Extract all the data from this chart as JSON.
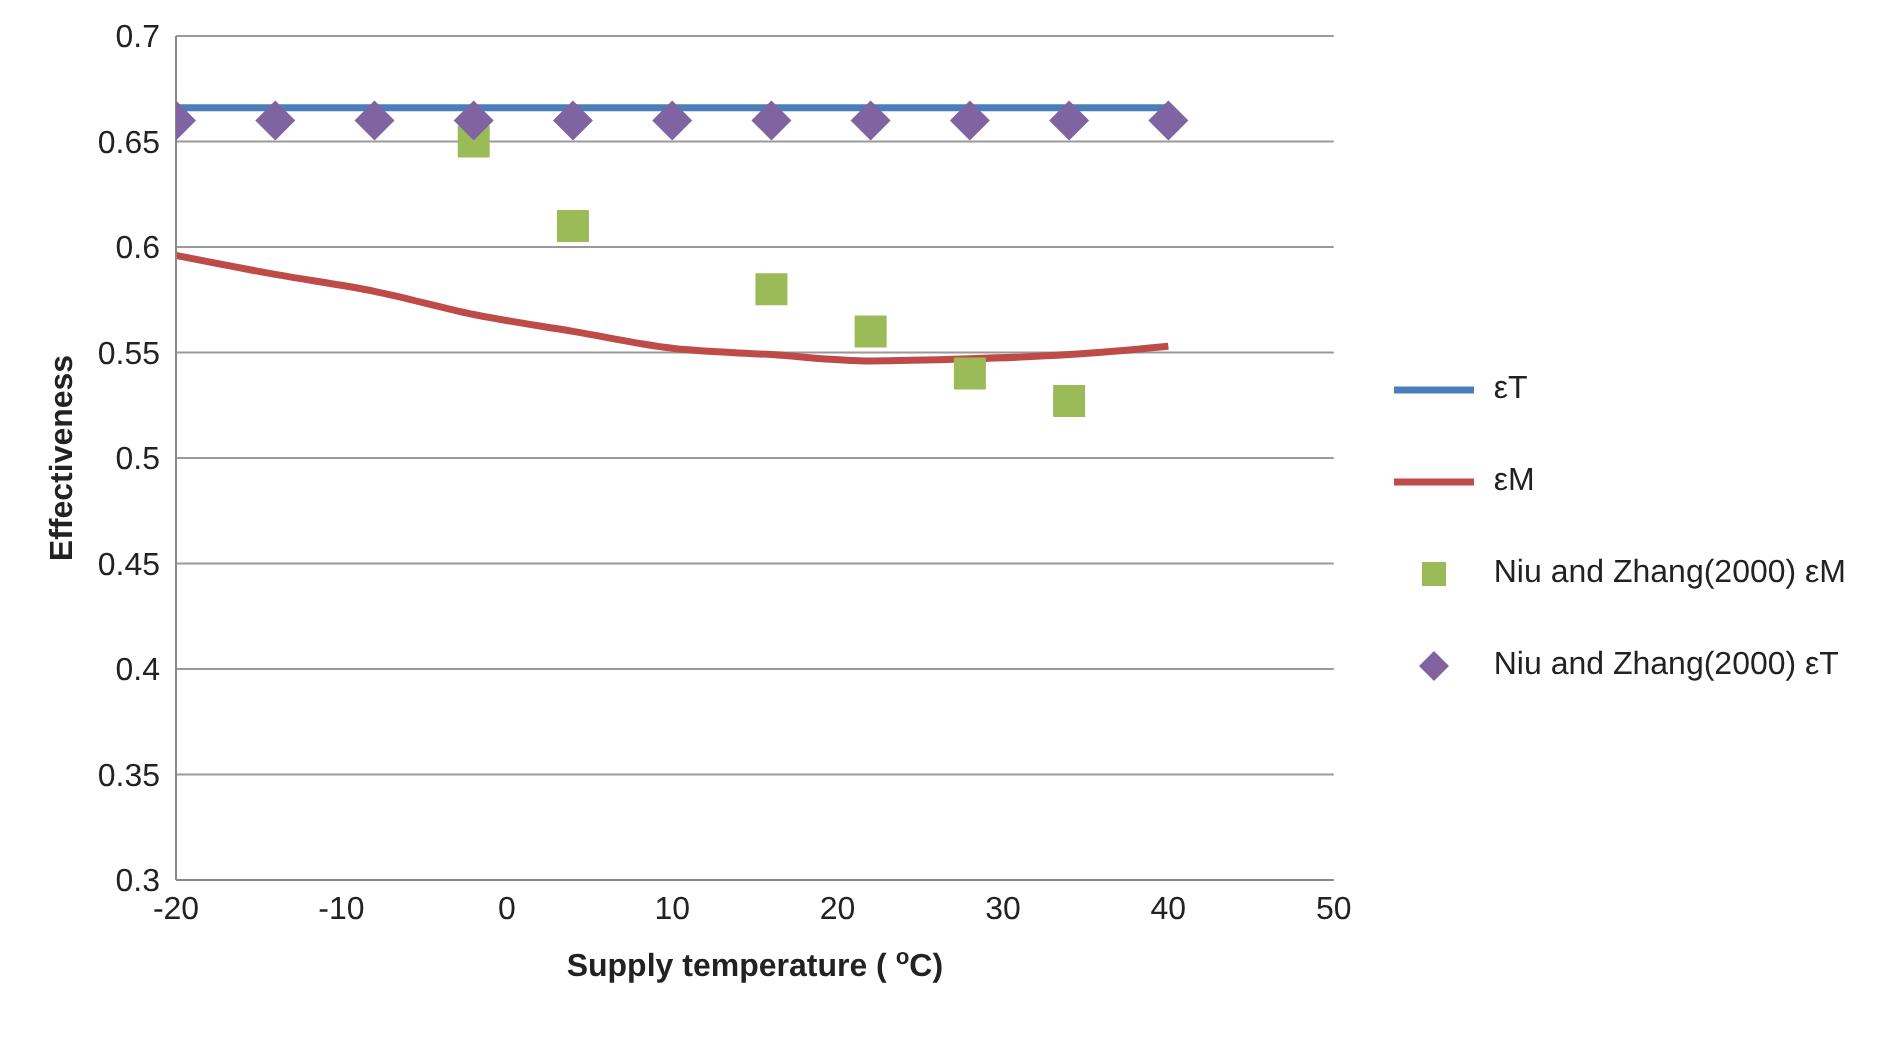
{
  "chart_data": {
    "type": "line",
    "xlabel": "Supply temperature ( $^{o}$C)",
    "ylabel": "Effectiveness",
    "x": [
      -20,
      -14,
      -8,
      -2,
      4,
      10,
      16,
      22,
      28,
      34,
      40
    ],
    "xlim": [
      -20,
      50
    ],
    "xticks": [
      -20,
      -10,
      0,
      10,
      20,
      30,
      40,
      50
    ],
    "ylim": [
      0.3,
      0.7
    ],
    "yticks": [
      0.3,
      0.35,
      0.4,
      0.45,
      0.5,
      0.55,
      0.6,
      0.65,
      0.7
    ],
    "grid": "y",
    "legend": "right",
    "series": [
      {
        "name": "εT",
        "type": "line",
        "color": "#4a7ebb",
        "marker": "none",
        "values": [
          0.666,
          0.666,
          0.666,
          0.666,
          0.666,
          0.666,
          0.666,
          0.666,
          0.666,
          0.666,
          0.666
        ]
      },
      {
        "name": "εM",
        "type": "line",
        "color": "#be4b48",
        "marker": "none",
        "values": [
          0.596,
          0.587,
          0.579,
          0.568,
          0.56,
          0.552,
          0.549,
          0.546,
          0.547,
          0.549,
          0.553
        ]
      },
      {
        "name": "Niu and Zhang(2000) εM",
        "type": "scatter",
        "color": "#9bbb59",
        "marker": "square",
        "x": [
          -2,
          4,
          16,
          22,
          28,
          34
        ],
        "values": [
          0.65,
          0.61,
          0.58,
          0.56,
          0.54,
          0.527
        ]
      },
      {
        "name": "Niu and Zhang(2000) εT",
        "type": "scatter",
        "color": "#8064a2",
        "marker": "diamond",
        "values": [
          0.66,
          0.66,
          0.66,
          0.66,
          0.66,
          0.66,
          0.66,
          0.66,
          0.66,
          0.66,
          0.66
        ]
      }
    ]
  }
}
